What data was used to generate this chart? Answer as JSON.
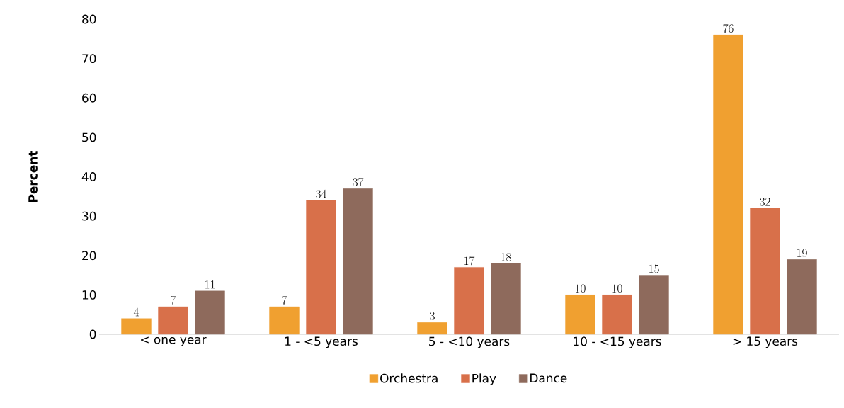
{
  "chart_data": {
    "type": "bar",
    "ylabel": "Percent",
    "categories": [
      "< one year",
      "1 - <5 years",
      "5 - <10 years",
      "10 - <15 years",
      "> 15 years"
    ],
    "series": [
      {
        "name": "Orchestra",
        "color": "#f0a030",
        "values": [
          4,
          7,
          3,
          10,
          76
        ]
      },
      {
        "name": "Play",
        "color": "#d8704a",
        "values": [
          7,
          34,
          17,
          10,
          32
        ]
      },
      {
        "name": "Dance",
        "color": "#8e6a5c",
        "values": [
          11,
          37,
          18,
          15,
          19
        ]
      }
    ],
    "ylim": [
      0,
      80
    ],
    "yticks": [
      0,
      10,
      20,
      30,
      40,
      50,
      60,
      70,
      80
    ],
    "data_labels": true,
    "grid": false,
    "legend": "bottom"
  }
}
